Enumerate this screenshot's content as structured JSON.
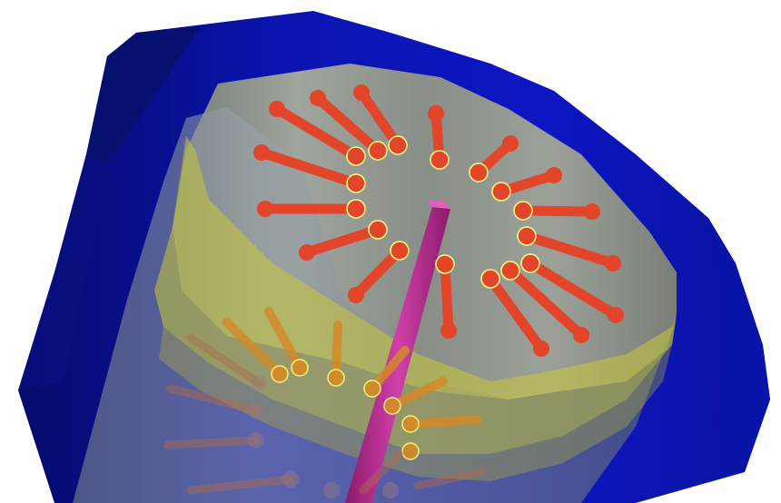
{
  "scene": {
    "background": "#ffffff",
    "outer_shell_color": "#0b12b8",
    "outer_shell_dark": "#050a5a",
    "inner_cylinder_color": "#9aa08a",
    "yellow_band_color": "#c8c836",
    "lipid_head_color": "#e2452a",
    "lipid_head_outline": "#ffff80",
    "lower_lipid_color": "#d48a2a",
    "central_rod_color": "#b8288c",
    "upper_ring_lipid_count": 22,
    "lower_ring_lipid_count": 14
  }
}
